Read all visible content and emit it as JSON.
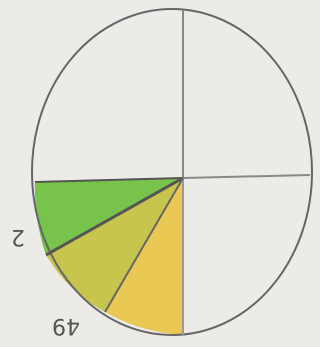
{
  "labels": {
    "left": "2",
    "bottom": "49"
  }
}
